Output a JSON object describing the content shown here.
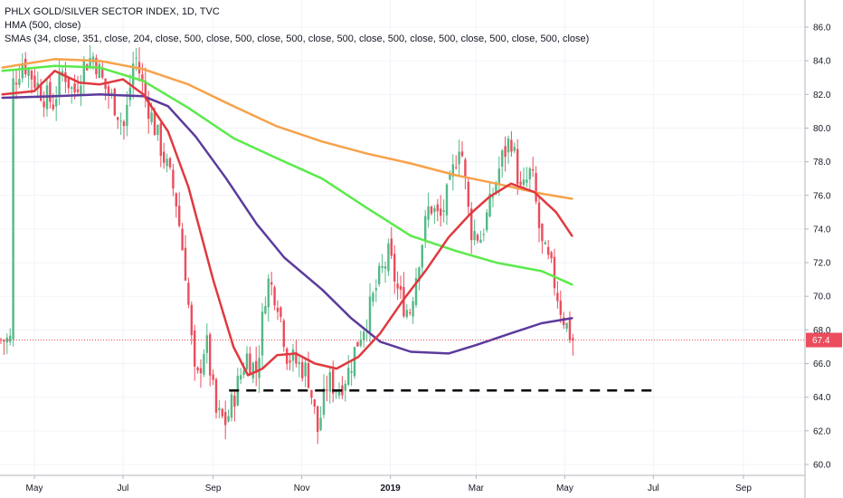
{
  "legend": {
    "title": "PHLX GOLD/SILVER SECTOR INDEX, 1D, TVC",
    "hma": "HMA (500, close)",
    "smas": "SMAs (34, close, 351, close, 204, close, 500, close, 500, close, 500, close, 500, close, 500, close, 500, close, 500, close, 500, close)"
  },
  "chart_data": {
    "type": "candlestick",
    "title": "PHLX GOLD/SILVER SECTOR INDEX, 1D, TVC",
    "ylim": [
      59.5,
      87.0
    ],
    "y_ticks": [
      "60.0",
      "62.0",
      "64.0",
      "66.0",
      "68.0",
      "70.0",
      "72.0",
      "74.0",
      "76.0",
      "78.0",
      "80.0",
      "82.0",
      "84.0",
      "86.0"
    ],
    "x_ticks": [
      "May",
      "Jul",
      "Sep",
      "Nov",
      "2019",
      "Mar",
      "May",
      "Jul",
      "Sep"
    ],
    "last_price": "67.4",
    "colors": {
      "up": "#53b987",
      "down": "#eb4d5c",
      "sma_fast": "#e0393e",
      "sma_mid": "#5bea4b",
      "sma_slow": "#f7a24b",
      "hma": "#5c3b9c",
      "support": "#000000",
      "last_price": "#eb4d5c"
    },
    "close_path": [
      [
        "2018-04-16",
        82.6
      ],
      [
        "2018-04-23",
        84.0
      ],
      [
        "2018-04-30",
        83.0
      ],
      [
        "2018-05-07",
        82.0
      ],
      [
        "2018-05-14",
        81.5
      ],
      [
        "2018-05-21",
        83.5
      ],
      [
        "2018-05-28",
        82.0
      ],
      [
        "2018-06-04",
        83.8
      ],
      [
        "2018-06-11",
        84.3
      ],
      [
        "2018-06-18",
        82.5
      ],
      [
        "2018-06-25",
        81.5
      ],
      [
        "2018-07-02",
        80.0
      ],
      [
        "2018-07-09",
        84.5
      ],
      [
        "2018-07-16",
        82.0
      ],
      [
        "2018-07-23",
        80.0
      ],
      [
        "2018-07-30",
        78.0
      ],
      [
        "2018-08-06",
        76.0
      ],
      [
        "2018-08-13",
        71.5
      ],
      [
        "2018-08-20",
        64.5
      ],
      [
        "2018-08-27",
        67.5
      ],
      [
        "2018-09-03",
        63.0
      ],
      [
        "2018-09-10",
        62.5
      ],
      [
        "2018-09-17",
        64.5
      ],
      [
        "2018-09-24",
        66.5
      ],
      [
        "2018-10-01",
        65.5
      ],
      [
        "2018-10-08",
        71.0
      ],
      [
        "2018-10-15",
        70.0
      ],
      [
        "2018-10-22",
        66.5
      ],
      [
        "2018-10-29",
        66.0
      ],
      [
        "2018-11-05",
        65.5
      ],
      [
        "2018-11-12",
        62.0
      ],
      [
        "2018-11-19",
        65.0
      ],
      [
        "2018-11-26",
        64.5
      ],
      [
        "2018-12-03",
        65.5
      ],
      [
        "2018-12-10",
        67.5
      ],
      [
        "2018-12-17",
        69.0
      ],
      [
        "2018-12-24",
        71.0
      ],
      [
        "2018-12-31",
        72.5
      ],
      [
        "2019-01-07",
        70.0
      ],
      [
        "2019-01-14",
        69.0
      ],
      [
        "2019-01-21",
        72.5
      ],
      [
        "2019-01-28",
        75.5
      ],
      [
        "2019-02-04",
        74.5
      ],
      [
        "2019-02-11",
        76.5
      ],
      [
        "2019-02-18",
        79.5
      ],
      [
        "2019-02-25",
        74.0
      ],
      [
        "2019-03-04",
        73.5
      ],
      [
        "2019-03-11",
        75.5
      ],
      [
        "2019-03-18",
        78.0
      ],
      [
        "2019-03-25",
        79.5
      ],
      [
        "2019-04-01",
        76.0
      ],
      [
        "2019-04-08",
        77.5
      ],
      [
        "2019-04-15",
        73.0
      ],
      [
        "2019-04-22",
        71.5
      ],
      [
        "2019-04-29",
        69.0
      ],
      [
        "2019-05-06",
        67.4
      ]
    ],
    "sma_fast": [
      [
        "2018-04-09",
        82.0
      ],
      [
        "2018-05-01",
        82.2
      ],
      [
        "2018-05-15",
        83.4
      ],
      [
        "2018-06-01",
        82.7
      ],
      [
        "2018-06-15",
        82.6
      ],
      [
        "2018-07-01",
        82.9
      ],
      [
        "2018-07-15",
        82.0
      ],
      [
        "2018-08-01",
        79.8
      ],
      [
        "2018-08-15",
        76.5
      ],
      [
        "2018-09-01",
        71.0
      ],
      [
        "2018-09-15",
        67.0
      ],
      [
        "2018-09-25",
        65.3
      ],
      [
        "2018-10-05",
        65.7
      ],
      [
        "2018-10-15",
        66.5
      ],
      [
        "2018-10-28",
        66.6
      ],
      [
        "2018-11-10",
        66.0
      ],
      [
        "2018-11-25",
        65.7
      ],
      [
        "2018-12-10",
        66.4
      ],
      [
        "2018-12-25",
        67.8
      ],
      [
        "2019-01-10",
        69.8
      ],
      [
        "2019-01-25",
        71.5
      ],
      [
        "2019-02-10",
        73.5
      ],
      [
        "2019-02-25",
        74.9
      ],
      [
        "2019-03-10",
        75.9
      ],
      [
        "2019-03-25",
        76.7
      ],
      [
        "2019-04-10",
        76.2
      ],
      [
        "2019-04-25",
        75.0
      ],
      [
        "2019-05-06",
        73.6
      ]
    ],
    "sma_mid": [
      [
        "2018-04-09",
        83.4
      ],
      [
        "2018-05-15",
        83.7
      ],
      [
        "2018-06-15",
        83.6
      ],
      [
        "2018-07-15",
        82.8
      ],
      [
        "2018-08-15",
        81.2
      ],
      [
        "2018-09-15",
        79.4
      ],
      [
        "2018-10-15",
        78.2
      ],
      [
        "2018-11-15",
        77.0
      ],
      [
        "2018-12-15",
        75.3
      ],
      [
        "2019-01-15",
        73.6
      ],
      [
        "2019-02-15",
        72.7
      ],
      [
        "2019-03-15",
        72.0
      ],
      [
        "2019-04-15",
        71.5
      ],
      [
        "2019-05-06",
        70.7
      ]
    ],
    "sma_slow": [
      [
        "2018-04-09",
        83.6
      ],
      [
        "2018-05-15",
        84.1
      ],
      [
        "2018-06-15",
        84.0
      ],
      [
        "2018-07-15",
        83.5
      ],
      [
        "2018-08-15",
        82.6
      ],
      [
        "2018-09-15",
        81.3
      ],
      [
        "2018-10-15",
        80.1
      ],
      [
        "2018-11-15",
        79.2
      ],
      [
        "2018-12-15",
        78.5
      ],
      [
        "2019-01-15",
        77.9
      ],
      [
        "2019-02-15",
        77.2
      ],
      [
        "2019-03-15",
        76.7
      ],
      [
        "2019-04-15",
        76.1
      ],
      [
        "2019-05-06",
        75.8
      ]
    ],
    "hma": [
      [
        "2018-04-09",
        81.8
      ],
      [
        "2018-05-15",
        81.9
      ],
      [
        "2018-06-15",
        82.0
      ],
      [
        "2018-07-15",
        81.9
      ],
      [
        "2018-08-01",
        81.3
      ],
      [
        "2018-08-20",
        79.5
      ],
      [
        "2018-09-10",
        77.0
      ],
      [
        "2018-10-01",
        74.3
      ],
      [
        "2018-10-20",
        72.3
      ],
      [
        "2018-11-15",
        70.4
      ],
      [
        "2018-12-05",
        68.7
      ],
      [
        "2018-12-25",
        67.3
      ],
      [
        "2019-01-15",
        66.7
      ],
      [
        "2019-02-10",
        66.6
      ],
      [
        "2019-03-01",
        67.1
      ],
      [
        "2019-03-25",
        67.8
      ],
      [
        "2019-04-15",
        68.4
      ],
      [
        "2019-05-06",
        68.7
      ]
    ],
    "support_line": {
      "y": 64.4,
      "x": [
        "2018-09-12",
        "2019-06-30"
      ]
    }
  }
}
